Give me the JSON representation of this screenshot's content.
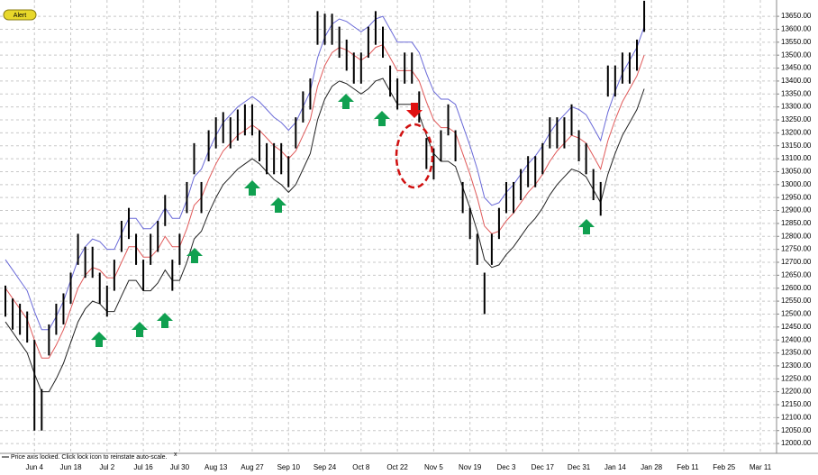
{
  "chart_data": {
    "type": "ohlc",
    "alert_button": "Alert",
    "status_text": "Price axis locked. Click lock icon to reinstate auto-scale.",
    "close_mark": "x",
    "bar_color": "#000000",
    "grid": true,
    "ylim": [
      11962,
      13713
    ],
    "yticks": [
      {
        "value": 12000,
        "label": "12000.00"
      },
      {
        "value": 12050,
        "label": "12050.00"
      },
      {
        "value": 12100,
        "label": "12100.00"
      },
      {
        "value": 12150,
        "label": "12150.00"
      },
      {
        "value": 12200,
        "label": "12200.00"
      },
      {
        "value": 12250,
        "label": "12250.00"
      },
      {
        "value": 12300,
        "label": "12300.00"
      },
      {
        "value": 12350,
        "label": "12350.00"
      },
      {
        "value": 12400,
        "label": "12400.00"
      },
      {
        "value": 12450,
        "label": "12450.00"
      },
      {
        "value": 12500,
        "label": "12500.00"
      },
      {
        "value": 12550,
        "label": "12550.00"
      },
      {
        "value": 12600,
        "label": "12600.00"
      },
      {
        "value": 12650,
        "label": "12650.00"
      },
      {
        "value": 12700,
        "label": "12700.00"
      },
      {
        "value": 12750,
        "label": "12750.00"
      },
      {
        "value": 12800,
        "label": "12800.00"
      },
      {
        "value": 12850,
        "label": "12850.00"
      },
      {
        "value": 12900,
        "label": "12900.00"
      },
      {
        "value": 12950,
        "label": "12950.00"
      },
      {
        "value": 13000,
        "label": "13000.00"
      },
      {
        "value": 13050,
        "label": "13050.00"
      },
      {
        "value": 13100,
        "label": "13100.00"
      },
      {
        "value": 13150,
        "label": "13150.00"
      },
      {
        "value": 13200,
        "label": "13200.00"
      },
      {
        "value": 13250,
        "label": "13250.00"
      },
      {
        "value": 13300,
        "label": "13300.00"
      },
      {
        "value": 13350,
        "label": "13350.00"
      },
      {
        "value": 13400,
        "label": "13400.00"
      },
      {
        "value": 13450,
        "label": "13450.00"
      },
      {
        "value": 13500,
        "label": "13500.00"
      },
      {
        "value": 13550,
        "label": "13550.00"
      },
      {
        "value": 13600,
        "label": "13600.00"
      },
      {
        "value": 13650,
        "label": "13650.00"
      }
    ],
    "categories": [
      null,
      null,
      null,
      null,
      "Jun 4",
      null,
      null,
      null,
      null,
      "Jun 18",
      null,
      null,
      null,
      null,
      "Jul 2",
      null,
      null,
      null,
      null,
      "Jul 16",
      null,
      null,
      null,
      null,
      "Jul 30",
      null,
      null,
      null,
      null,
      "Aug 13",
      null,
      null,
      null,
      null,
      "Aug 27",
      null,
      null,
      null,
      null,
      "Sep 10",
      null,
      null,
      null,
      null,
      "Sep 24",
      null,
      null,
      null,
      null,
      "Oct 8",
      null,
      null,
      null,
      null,
      "Oct 22",
      null,
      null,
      null,
      null,
      "Nov 5",
      null,
      null,
      null,
      null,
      "Nov 19",
      null,
      null,
      null,
      null,
      "Dec 3",
      null,
      null,
      null,
      null,
      "Dec 17",
      null,
      null,
      null,
      null,
      "Dec 31",
      null,
      null,
      null,
      null,
      "Jan 14",
      null,
      null,
      null,
      null,
      "Jan 28",
      null,
      null,
      null,
      null,
      "Feb 11",
      null,
      null,
      null,
      null,
      "Feb 25",
      null,
      null,
      null,
      null,
      "Mar 11"
    ],
    "high": [
      12610,
      12560,
      12540,
      12510,
      12400,
      12210,
      12460,
      12540,
      12580,
      12660,
      12810,
      12760,
      12760,
      12660,
      12610,
      12710,
      12860,
      12910,
      12810,
      12710,
      12810,
      12860,
      12960,
      12710,
      12810,
      13010,
      13160,
      13010,
      13210,
      13260,
      13280,
      13260,
      13290,
      13310,
      13310,
      13210,
      13160,
      13160,
      13160,
      13110,
      13260,
      13360,
      13410,
      13670,
      13660,
      13660,
      13610,
      13560,
      13510,
      13510,
      13610,
      13670,
      13610,
      13460,
      13410,
      13510,
      13510,
      13360,
      13180,
      13140,
      13210,
      13310,
      13210,
      13010,
      12910,
      12810,
      12660,
      12810,
      12910,
      13010,
      13010,
      13060,
      13110,
      13110,
      13160,
      13260,
      13260,
      13260,
      13310,
      13210,
      13160,
      13060,
      13010,
      13460,
      13460,
      13510,
      13510,
      13560,
      13710,
      null,
      null,
      null,
      null,
      null,
      null,
      null,
      null,
      null,
      null,
      null,
      null,
      null,
      null,
      null,
      null
    ],
    "low": [
      12490,
      12440,
      12420,
      12390,
      12050,
      12050,
      12340,
      12420,
      12460,
      12540,
      12690,
      12640,
      12640,
      12540,
      12490,
      12590,
      12740,
      12790,
      12690,
      12590,
      12690,
      12740,
      12840,
      12590,
      12690,
      12890,
      13040,
      12890,
      13090,
      13140,
      13160,
      13140,
      13170,
      13190,
      13190,
      13090,
      13040,
      13040,
      13040,
      12990,
      13140,
      13240,
      13290,
      13540,
      13540,
      13540,
      13490,
      13440,
      13390,
      13390,
      13490,
      13540,
      13490,
      13340,
      13290,
      13390,
      13390,
      13240,
      13060,
      13020,
      13090,
      13190,
      13090,
      12890,
      12790,
      12690,
      12500,
      12690,
      12790,
      12890,
      12890,
      12940,
      12990,
      12990,
      13040,
      13140,
      13140,
      13140,
      13190,
      13090,
      13040,
      12940,
      12880,
      13340,
      13340,
      13390,
      13390,
      13440,
      13590,
      null,
      null,
      null,
      null,
      null,
      null,
      null,
      null,
      null,
      null,
      null,
      null,
      null,
      null,
      null,
      null
    ],
    "lines": [
      {
        "color": "#6a6ad8",
        "values": [
          12710,
          12670,
          12630,
          12590,
          12510,
          12440,
          12440,
          12490,
          12550,
          12630,
          12710,
          12760,
          12790,
          12780,
          12750,
          12750,
          12810,
          12870,
          12870,
          12830,
          12830,
          12860,
          12910,
          12870,
          12870,
          12940,
          13030,
          13060,
          13130,
          13190,
          13240,
          13270,
          13300,
          13320,
          13340,
          13320,
          13290,
          13260,
          13240,
          13210,
          13240,
          13300,
          13360,
          13490,
          13570,
          13620,
          13640,
          13630,
          13610,
          13590,
          13610,
          13640,
          13650,
          13600,
          13550,
          13550,
          13550,
          13510,
          13430,
          13360,
          13330,
          13330,
          13310,
          13230,
          13150,
          13060,
          12950,
          12920,
          12930,
          12970,
          13000,
          13040,
          13080,
          13110,
          13150,
          13200,
          13240,
          13270,
          13300,
          13290,
          13270,
          13220,
          13170,
          13280,
          13360,
          13430,
          13480,
          13530,
          13610,
          null,
          null,
          null,
          null,
          null,
          null,
          null,
          null,
          null,
          null,
          null,
          null,
          null,
          null,
          null,
          null
        ]
      },
      {
        "color": "#e05a5a",
        "values": [
          12600,
          12560,
          12520,
          12480,
          12400,
          12330,
          12330,
          12380,
          12440,
          12520,
          12600,
          12650,
          12680,
          12670,
          12640,
          12640,
          12700,
          12760,
          12760,
          12720,
          12720,
          12750,
          12800,
          12760,
          12760,
          12830,
          12920,
          12950,
          13020,
          13080,
          13130,
          13160,
          13190,
          13210,
          13230,
          13210,
          13180,
          13150,
          13130,
          13100,
          13130,
          13190,
          13250,
          13380,
          13460,
          13510,
          13530,
          13520,
          13500,
          13480,
          13500,
          13530,
          13540,
          13490,
          13440,
          13440,
          13440,
          13400,
          13320,
          13250,
          13220,
          13220,
          13200,
          13120,
          13040,
          12950,
          12840,
          12810,
          12820,
          12860,
          12890,
          12930,
          12970,
          13000,
          13040,
          13090,
          13130,
          13160,
          13190,
          13180,
          13160,
          13110,
          13060,
          13170,
          13250,
          13320,
          13370,
          13420,
          13500,
          null,
          null,
          null,
          null,
          null,
          null,
          null,
          null,
          null,
          null,
          null,
          null,
          null,
          null,
          null,
          null
        ]
      },
      {
        "color": "#222222",
        "values": [
          12470,
          12430,
          12390,
          12350,
          12270,
          12200,
          12200,
          12250,
          12310,
          12390,
          12470,
          12520,
          12550,
          12540,
          12510,
          12510,
          12570,
          12630,
          12630,
          12590,
          12590,
          12620,
          12670,
          12630,
          12630,
          12700,
          12790,
          12820,
          12890,
          12950,
          13000,
          13030,
          13060,
          13080,
          13100,
          13080,
          13050,
          13020,
          13000,
          12970,
          13000,
          13060,
          13120,
          13250,
          13330,
          13380,
          13400,
          13390,
          13370,
          13350,
          13370,
          13400,
          13410,
          13360,
          13310,
          13310,
          13310,
          13270,
          13190,
          13120,
          13090,
          13090,
          13070,
          12990,
          12910,
          12820,
          12710,
          12680,
          12690,
          12730,
          12760,
          12800,
          12840,
          12870,
          12910,
          12960,
          13000,
          13030,
          13060,
          13050,
          13030,
          12980,
          12930,
          13040,
          13120,
          13190,
          13240,
          13290,
          13370,
          null,
          null,
          null,
          null,
          null,
          null,
          null,
          null,
          null,
          null,
          null,
          null,
          null,
          null,
          null,
          null
        ]
      }
    ]
  }
}
